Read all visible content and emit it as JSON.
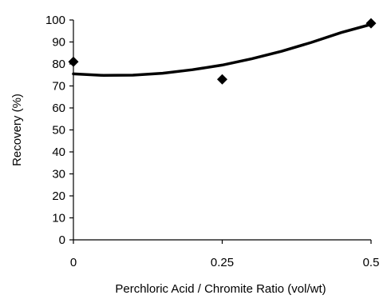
{
  "chart_data": {
    "type": "scatter",
    "title": "",
    "xlabel": "Perchloric Acid / Chromite Ratio (vol/wt)",
    "ylabel": "Recovery (%)",
    "xlim": [
      0,
      0.5
    ],
    "ylim": [
      0,
      100
    ],
    "xticks": [
      0,
      0.25,
      0.5
    ],
    "xtick_labels": [
      "0",
      "0.25",
      "0.5"
    ],
    "yticks": [
      0,
      10,
      20,
      30,
      40,
      50,
      60,
      70,
      80,
      90,
      100
    ],
    "ytick_labels": [
      "0",
      "10",
      "20",
      "30",
      "40",
      "50",
      "60",
      "70",
      "80",
      "90",
      "100"
    ],
    "grid": false,
    "legend": "none",
    "series": [
      {
        "marker": "diamond",
        "color": "#000000",
        "points": [
          {
            "x": 0,
            "y": 81
          },
          {
            "x": 0.25,
            "y": 73
          },
          {
            "x": 0.5,
            "y": 98.5
          }
        ]
      }
    ],
    "trendline": {
      "type": "polynomial-2",
      "color": "#000000",
      "points": [
        {
          "x": 0,
          "y": 75.5
        },
        {
          "x": 0.05,
          "y": 74.8
        },
        {
          "x": 0.1,
          "y": 74.9
        },
        {
          "x": 0.15,
          "y": 75.8
        },
        {
          "x": 0.2,
          "y": 77.4
        },
        {
          "x": 0.25,
          "y": 79.5
        },
        {
          "x": 0.3,
          "y": 82.4
        },
        {
          "x": 0.35,
          "y": 85.8
        },
        {
          "x": 0.4,
          "y": 89.8
        },
        {
          "x": 0.45,
          "y": 94.3
        },
        {
          "x": 0.5,
          "y": 98.0
        }
      ]
    }
  }
}
